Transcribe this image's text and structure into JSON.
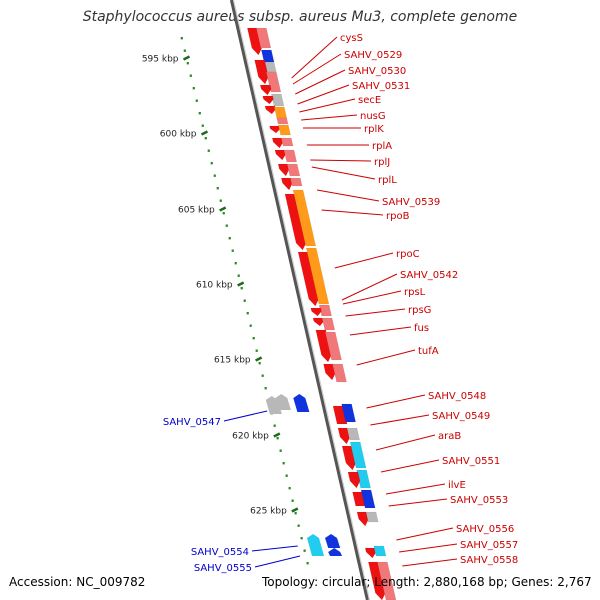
{
  "title": "Staphylococcus aureus subsp. aureus Mu3, complete genome",
  "footer": {
    "accession": "Accession: NC_009782",
    "topology": "Topology: circular; Length: 2,880,168 bp; Genes: 2,767"
  },
  "colors": {
    "red": "#ee1111",
    "pink": "#f07878",
    "orange": "#ff9a1a",
    "blue": "#1133dd",
    "cyan": "#22ccee",
    "grey": "#b8b8b8",
    "label_red": "#cc0000",
    "label_blue": "#0000cc",
    "scale_dot": "#2a8a2a",
    "scale_tick": "#1a6e1a"
  },
  "scale": {
    "ticks": [
      {
        "label": "595 kbp",
        "kbp": 595
      },
      {
        "label": "600 kbp",
        "kbp": 600
      },
      {
        "label": "605 kbp",
        "kbp": 605
      },
      {
        "label": "610 kbp",
        "kbp": 610
      },
      {
        "label": "615 kbp",
        "kbp": 615
      },
      {
        "label": "620 kbp",
        "kbp": 620
      },
      {
        "label": "625 kbp",
        "kbp": 625
      }
    ]
  },
  "genes_right": [
    "cysS",
    "SAHV_0529",
    "SAHV_0530",
    "SAHV_0531",
    "secE",
    "nusG",
    "rplK",
    "rplA",
    "rplJ",
    "rplL",
    "SAHV_0539",
    "rpoB",
    "rpoC",
    "SAHV_0542",
    "rpsL",
    "rpsG",
    "fus",
    "tufA",
    "SAHV_0548",
    "SAHV_0549",
    "araB",
    "SAHV_0551",
    "ilvE",
    "SAHV_0553",
    "SAHV_0556",
    "SAHV_0557",
    "SAHV_0558"
  ],
  "genes_left": [
    "SAHV_0547",
    "SAHV_0554",
    "SAHV_0555"
  ]
}
